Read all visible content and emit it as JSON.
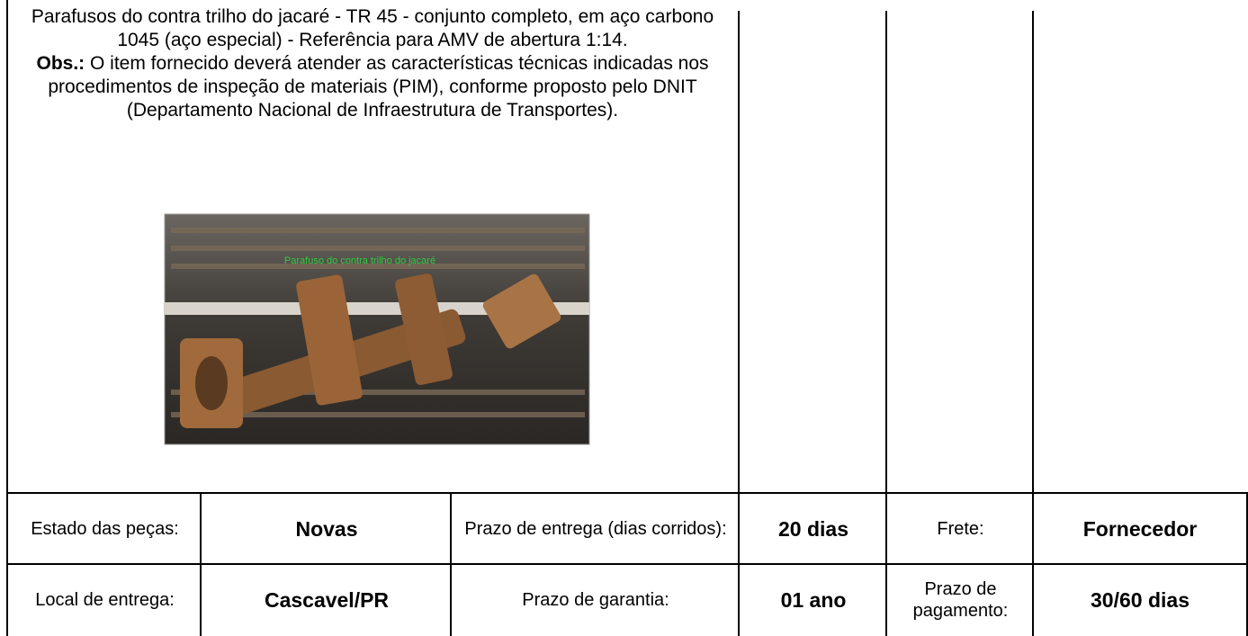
{
  "description": {
    "text": "Parafusos do contra trilho do jacaré - TR 45 - conjunto completo, em aço carbono 1045 (aço especial) -  Referência para AMV de abertura 1:14.",
    "obs_label": "Obs.:",
    "obs_text": "O item fornecido deverá atender as características técnicas indicadas nos procedimentos de inspeção de materiais (PIM), conforme proposto pelo DNIT (Departamento Nacional de Infraestrutura de Transportes).",
    "photo_caption": "Parafuso do contra trilho do jacaré"
  },
  "rows": [
    [
      "Estado das peças:",
      "Novas",
      "Prazo de entrega (dias corridos):",
      "20 dias",
      "Frete:",
      "Fornecedor"
    ],
    [
      "Local de entrega:",
      "Cascavel/PR",
      "Prazo de garantia:",
      "01 ano",
      "Prazo de pagamento:",
      "30/60 dias"
    ]
  ]
}
